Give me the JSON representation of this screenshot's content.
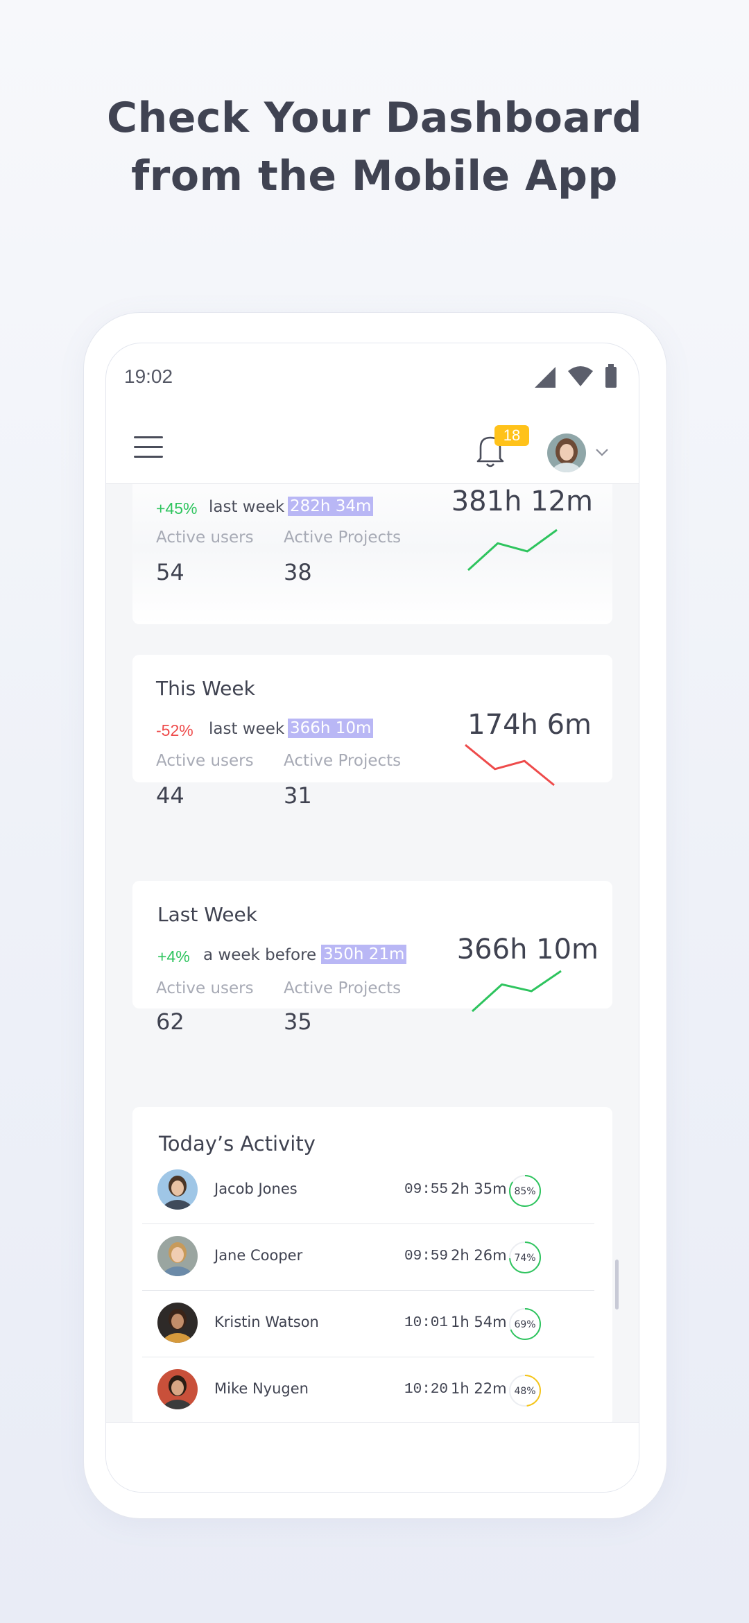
{
  "headline": {
    "line1": "Check Your Dashboard",
    "line2": "from the Mobile App"
  },
  "status_bar": {
    "time": "19:02",
    "icons": [
      "cellular-signal-icon",
      "wifi-icon",
      "battery-icon"
    ]
  },
  "app_bar": {
    "menu_icon": "hamburger-menu-icon",
    "notifications_icon": "bell-icon",
    "notifications_count": "18",
    "avatar_icon": "user-avatar",
    "dropdown_icon": "chevron-down-icon"
  },
  "colors": {
    "positive": "#2ec45e",
    "negative": "#ee4b4b",
    "highlight": "#b9b7f5",
    "badge": "#ffc21a",
    "progress_green": "#2ec45e",
    "progress_yellow": "#f5c518"
  },
  "cards": [
    {
      "title": "",
      "delta": "+45%",
      "delta_dir": "up",
      "comparison_label": "last week",
      "comparison_value": "282h 34m",
      "total": "381h 12m",
      "active_users_label": "Active users",
      "active_users": "54",
      "active_projects_label": "Active Projects",
      "active_projects": "38",
      "trend": [
        1,
        3,
        2.4,
        4
      ]
    },
    {
      "title": "This Week",
      "delta": "-52%",
      "delta_dir": "down",
      "comparison_label": "last week",
      "comparison_value": "366h 10m",
      "total": "174h 6m",
      "active_users_label": "Active users",
      "active_users": "44",
      "active_projects_label": "Active Projects",
      "active_projects": "31",
      "trend": [
        4,
        2.2,
        2.8,
        1
      ]
    },
    {
      "title": "Last Week",
      "delta": "+4%",
      "delta_dir": "up",
      "comparison_label": "a week before",
      "comparison_value": "350h 21m",
      "total": "366h 10m",
      "active_users_label": "Active users",
      "active_users": "62",
      "active_projects_label": "Active Projects",
      "active_projects": "35",
      "trend": [
        1,
        3,
        2.5,
        4
      ]
    }
  ],
  "activity": {
    "title": "Today’s Activity",
    "rows": [
      {
        "name": "Jacob Jones",
        "time": "09:55",
        "duration": "2h 35m",
        "progress": "85%",
        "progress_value": 0.85,
        "color": "#2ec45e"
      },
      {
        "name": "Jane Cooper",
        "time": "09:59",
        "duration": "2h 26m",
        "progress": "74%",
        "progress_value": 0.74,
        "color": "#2ec45e"
      },
      {
        "name": "Kristin Watson",
        "time": "10:01",
        "duration": "1h 54m",
        "progress": "69%",
        "progress_value": 0.69,
        "color": "#2ec45e"
      },
      {
        "name": "Mike Nyugen",
        "time": "10:20",
        "duration": "1h 22m",
        "progress": "48%",
        "progress_value": 0.48,
        "color": "#f5c518"
      }
    ]
  }
}
